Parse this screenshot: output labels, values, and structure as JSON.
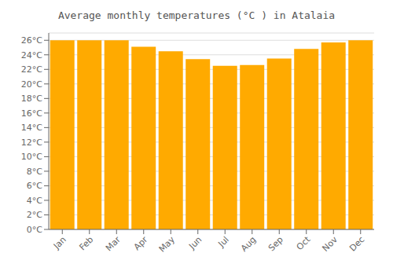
{
  "chart_data": {
    "type": "bar",
    "title": "Average monthly temperatures (°C ) in Atalaia",
    "categories": [
      "Jan",
      "Feb",
      "Mar",
      "Apr",
      "May",
      "Jun",
      "Jul",
      "Aug",
      "Sep",
      "Oct",
      "Nov",
      "Dec"
    ],
    "values": [
      26.0,
      26.0,
      26.0,
      25.1,
      24.5,
      23.4,
      22.5,
      22.6,
      23.5,
      24.8,
      25.7,
      26.0
    ],
    "color": "#FFAA00",
    "ylim": [
      0,
      27
    ],
    "yticks": [
      {
        "value": 0,
        "label": "0°C"
      },
      {
        "value": 2,
        "label": "2°C"
      },
      {
        "value": 4,
        "label": "4°C"
      },
      {
        "value": 6,
        "label": "6°C"
      },
      {
        "value": 8,
        "label": "8°C"
      },
      {
        "value": 10,
        "label": "10°C"
      },
      {
        "value": 12,
        "label": "12°C"
      },
      {
        "value": 14,
        "label": "14°C"
      },
      {
        "value": 16,
        "label": "16°C"
      },
      {
        "value": 18,
        "label": "18°C"
      },
      {
        "value": 20,
        "label": "20°C"
      },
      {
        "value": 22,
        "label": "22°C"
      },
      {
        "value": 24,
        "label": "24°C"
      },
      {
        "value": 26,
        "label": "26°C"
      }
    ],
    "grid": true
  }
}
